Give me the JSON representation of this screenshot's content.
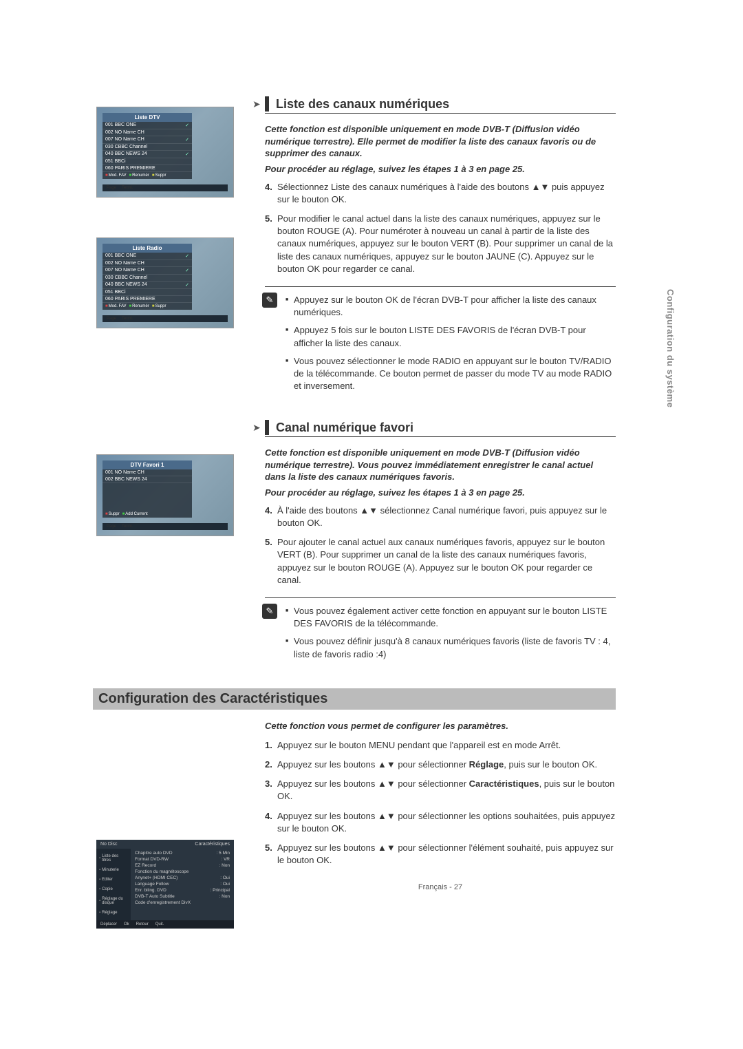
{
  "sideTab": "Configuration du système",
  "pageFooter": "Français - 27",
  "screenshots": {
    "dtv": {
      "title": "Liste DTV",
      "rows": [
        {
          "ch": "001 BBC ONE",
          "mark": "✓"
        },
        {
          "ch": "002 NO Name CH",
          "mark": ""
        },
        {
          "ch": "007 NO Name CH",
          "mark": "✓"
        },
        {
          "ch": "030 CBBC Channel",
          "mark": ""
        },
        {
          "ch": "040 BBC NEWS 24",
          "mark": "✓"
        },
        {
          "ch": "051 BBCi",
          "mark": ""
        },
        {
          "ch": "060 PARIS PREMIERE",
          "mark": ""
        }
      ],
      "footer": [
        "Mod. FAV",
        "Renumér",
        "Suppr"
      ],
      "nav": [
        "Page",
        "Termi."
      ]
    },
    "radio": {
      "title": "Liste Radio",
      "rows": [
        {
          "ch": "001 BBC ONE",
          "mark": "✓"
        },
        {
          "ch": "002 NO Name CH",
          "mark": ""
        },
        {
          "ch": "007 NO Name CH",
          "mark": "✓"
        },
        {
          "ch": "030 CBBC Channel",
          "mark": ""
        },
        {
          "ch": "040 BBC NEWS 24",
          "mark": "✓"
        },
        {
          "ch": "051 BBCi",
          "mark": ""
        },
        {
          "ch": "060 PARIS PREMIERE",
          "mark": ""
        }
      ],
      "footer": [
        "Mod. FAV",
        "Renumér",
        "Suppr"
      ],
      "nav": [
        "Page",
        "Termi."
      ]
    },
    "favori": {
      "title": "DTV Favori 1",
      "rows": [
        {
          "ch": "001 NO Name CH",
          "mark": ""
        },
        {
          "ch": "002 BBC NEWS 24",
          "mark": ""
        }
      ],
      "footer": [
        "Suppr",
        "Add Current"
      ],
      "nav": [
        "Page",
        "Termi."
      ]
    },
    "config": {
      "header": {
        "left": "No Disc",
        "right": "Caractéristiques"
      },
      "side": [
        "Liste des titres",
        "Minuterie",
        "Editer",
        "Copie",
        "Réglage du disque",
        "Réglage"
      ],
      "rows": [
        {
          "k": "Chapitre auto DVD",
          "v": ": 5 Min"
        },
        {
          "k": "Format DVD-RW",
          "v": ": VR"
        },
        {
          "k": "EZ Record",
          "v": ": Non"
        },
        {
          "k": "Fonction du magnétoscope",
          "v": ""
        },
        {
          "k": "Anynet+ (HDMI CEC)",
          "v": ": Oui"
        },
        {
          "k": "Language Follow",
          "v": ": Oui"
        },
        {
          "k": "Enr. biling. DVD",
          "v": ": Principal"
        },
        {
          "k": "DVB-T Auto Subtitle",
          "v": ": Non"
        },
        {
          "k": "Code d'enregistrement DivX",
          "v": ""
        }
      ],
      "footer": [
        "Déplacer",
        "Ok",
        "Retour",
        "Quit."
      ]
    }
  },
  "section1": {
    "heading": "Liste des canaux numériques",
    "intro": "Cette fonction est disponible uniquement en mode DVB-T (Diffusion vidéo numérique terrestre). Elle permet de modifier la liste des canaux favoris ou de supprimer des canaux.",
    "subIntro": "Pour procéder au réglage, suivez les étapes 1 à 3 en page 25.",
    "step4": "Sélectionnez Liste des canaux numériques à l'aide des boutons ▲▼ puis appuyez sur le bouton OK.",
    "step5": "Pour modifier le canal actuel dans la liste des canaux numériques, appuyez sur le bouton ROUGE (A). Pour numéroter à nouveau un canal à partir de la liste des canaux numériques, appuyez sur le bouton VERT (B). Pour supprimer un canal de la liste des canaux numériques, appuyez sur le bouton JAUNE (C). Appuyez sur le bouton OK pour regarder ce canal.",
    "notes": [
      "Appuyez sur le bouton OK de l'écran DVB-T pour afficher la liste des canaux numériques.",
      "Appuyez 5 fois sur le bouton LISTE DES FAVORIS de l'écran DVB-T pour afficher la liste des canaux.",
      "Vous pouvez sélectionner le mode RADIO en appuyant sur le bouton TV/RADIO de la télécommande. Ce bouton permet de passer du mode TV  au mode RADIO  et inversement."
    ]
  },
  "section2": {
    "heading": "Canal numérique favori",
    "intro": "Cette fonction est disponible uniquement en mode DVB-T (Diffusion vidéo numérique terrestre). Vous pouvez immédiatement enregistrer le canal actuel dans la liste des canaux numériques favoris.",
    "subIntro": "Pour procéder au réglage, suivez les étapes 1 à 3 en page 25.",
    "step4": "À l'aide des boutons ▲▼ sélectionnez Canal numérique favori, puis appuyez sur le bouton OK.",
    "step5": "Pour ajouter le canal actuel aux canaux numériques favoris, appuyez sur  le bouton VERT (B). Pour supprimer un canal de la liste des canaux numériques favoris, appuyez sur le bouton ROUGE (A). Appuyez sur le bouton OK pour regarder ce canal.",
    "notes": [
      "Vous pouvez également activer cette fonction en appuyant sur le bouton LISTE DES FAVORIS de la télécommande.",
      "Vous pouvez définir jusqu'à 8 canaux numériques favoris (liste de favoris TV : 4, liste de favoris radio :4)"
    ]
  },
  "section3": {
    "heading": "Configuration des Caractéristiques",
    "intro": "Cette fonction vous permet de configurer les paramètres.",
    "step1": "Appuyez sur le bouton MENU pendant que l'appareil est en mode Arrêt.",
    "step2a": "Appuyez sur les boutons ▲▼ pour sélectionner ",
    "step2b": "Réglage",
    "step2c": ", puis sur le bouton OK.",
    "step3a": "Appuyez sur les boutons ▲▼ pour sélectionner ",
    "step3b": "Caractéristiques",
    "step3c": ", puis sur le bouton OK.",
    "step4": "Appuyez sur les boutons ▲▼ pour sélectionner les options souhaitées, puis appuyez sur le bouton OK.",
    "step5": "Appuyez sur les boutons ▲▼ pour sélectionner l'élément souhaité, puis appuyez sur le bouton OK."
  }
}
